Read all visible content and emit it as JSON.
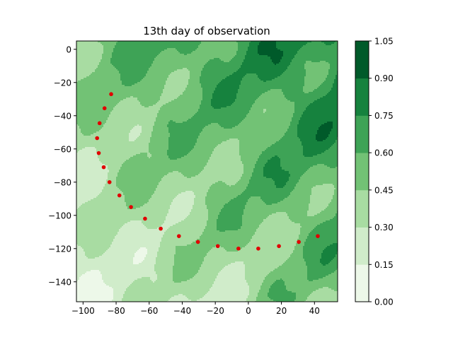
{
  "chart_data": {
    "type": "contour",
    "title": "13th day of observation",
    "xlim": [
      -104,
      54
    ],
    "ylim": [
      -152,
      5
    ],
    "xticks": [
      -100,
      -80,
      -60,
      -40,
      -20,
      0,
      20,
      40
    ],
    "yticks": [
      0,
      -20,
      -40,
      -60,
      -80,
      -100,
      -120,
      -140
    ],
    "xtick_labels": [
      "−100",
      "−80",
      "−60",
      "−40",
      "−20",
      "0",
      "20",
      "40"
    ],
    "ytick_labels": [
      "0",
      "−20",
      "−40",
      "−60",
      "−80",
      "−100",
      "−120",
      "−140"
    ],
    "colorbar": {
      "levels": [
        0.0,
        0.15,
        0.3,
        0.45,
        0.6,
        0.75,
        0.9,
        1.05
      ],
      "labels": [
        "0.00",
        "0.15",
        "0.30",
        "0.45",
        "0.60",
        "0.75",
        "0.90",
        "1.05"
      ],
      "colors": [
        "#edf8e9",
        "#d0ecca",
        "#a8dca2",
        "#72c275",
        "#3ea356",
        "#16823e",
        "#005a2a"
      ]
    },
    "scatter_points": {
      "color": "#e00000",
      "x": [
        -83,
        -87,
        -90,
        -91.5,
        -90.5,
        -87.5,
        -84,
        -78,
        -71,
        -62.5,
        -53,
        -42,
        -30.5,
        -18.5,
        -6,
        6,
        18.5,
        30.5,
        42
      ],
      "y": [
        -27,
        -35.5,
        -44.5,
        -53.5,
        -62.5,
        -71,
        -80,
        -88,
        -95,
        -102,
        -108,
        -112.5,
        -116,
        -118.5,
        -120,
        -120,
        -118.5,
        -116,
        -112.5
      ]
    }
  }
}
